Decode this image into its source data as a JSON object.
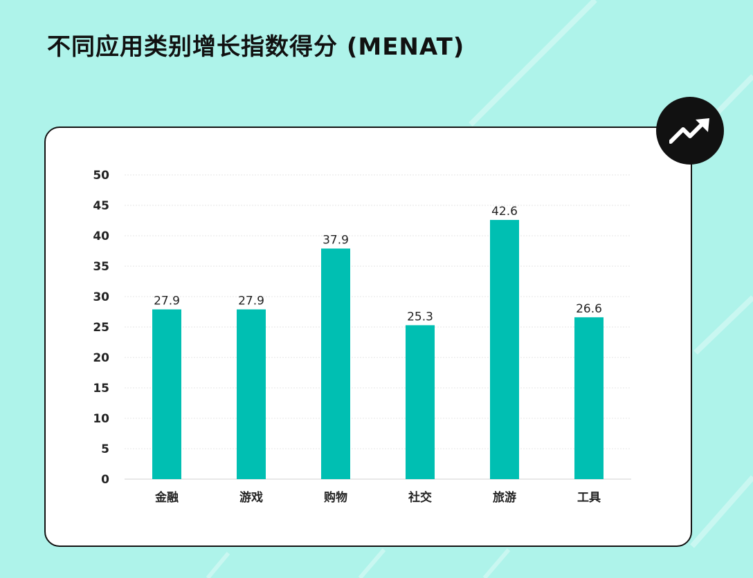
{
  "title": "不同应用类别增长指数得分 (MENAT)",
  "badge_icon": "trending-up-icon",
  "colors": {
    "background": "#aef3ea",
    "bar": "#00bfb2",
    "grid": "#e6e6e6"
  },
  "chart_data": {
    "type": "bar",
    "categories": [
      "金融",
      "游戏",
      "购物",
      "社交",
      "旅游",
      "工具"
    ],
    "values": [
      27.9,
      27.9,
      37.9,
      25.3,
      42.6,
      26.6
    ],
    "title": "不同应用类别增长指数得分 (MENAT)",
    "xlabel": "",
    "ylabel": "",
    "ylim": [
      0,
      50
    ],
    "yticks": [
      0,
      5,
      10,
      15,
      20,
      25,
      30,
      35,
      40,
      45,
      50
    ],
    "data_labels": true,
    "grid": true,
    "legend": "none"
  }
}
